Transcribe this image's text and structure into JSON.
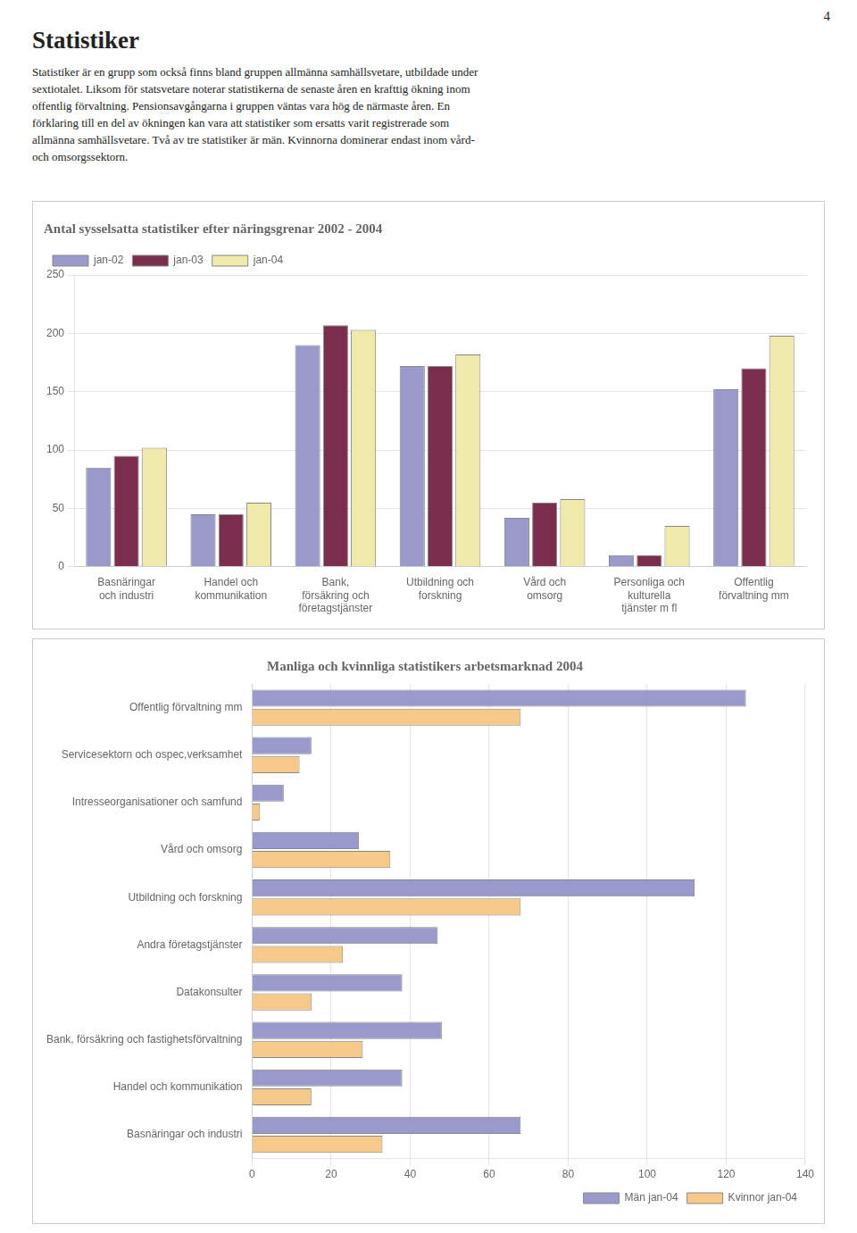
{
  "page_number": "4",
  "title": "Statistiker",
  "text": [
    "Statistiker är en grupp som också finns bland gruppen allmänna samhällsvetare, utbildade under",
    "sextiotalet. Liksom för statsvetare noterar statistikerna de senaste åren en krafttig ökning inom",
    "offentlig förvaltning. Pensionsavgångarna i gruppen väntas vara hög de närmaste åren. En",
    "förklaring till en del av ökningen kan vara att statistiker som ersatts varit registrerade som",
    "allmänna samhällsvetare. Två av tre statistiker är män. Kvinnorna dominerar endast inom vård-",
    "och omsorgssektorn."
  ],
  "chart_data": [
    {
      "type": "bar",
      "title": "Antal sysselsatta statistiker efter näringsgrenar 2002 - 2004",
      "categories": [
        "Basnäringar\noch industri",
        "Handel och\nkommunikation",
        "Bank,\nförsäkring och\nföretagstjänster",
        "Utbildning och\nforskning",
        "Vård och\nomsorg",
        "Personliga och\nkulturella\ntjänster m fl",
        "Offentlig\nförvaltning mm"
      ],
      "series": [
        {
          "name": "jan-02",
          "color": "#9999CC",
          "values": [
            85,
            45,
            190,
            172,
            42,
            10,
            152
          ]
        },
        {
          "name": "jan-03",
          "color": "#7B2D4E",
          "values": [
            95,
            45,
            207,
            172,
            55,
            10,
            170
          ]
        },
        {
          "name": "jan-04",
          "color": "#F0EAAA",
          "values": [
            102,
            55,
            203,
            182,
            58,
            35,
            198
          ]
        }
      ],
      "ylim": [
        0,
        250
      ],
      "yticks": [
        0,
        50,
        100,
        150,
        200,
        250
      ],
      "grid": true,
      "legend": "upper left"
    },
    {
      "type": "bar",
      "orientation": "horizontal",
      "title": "Manliga och kvinnliga statistikers arbetsmarknad 2004",
      "categories": [
        "Offentlig förvaltning mm",
        "Servicesektorn och ospec,verksamhet",
        "Intresseorganisationer och samfund",
        "Vård och omsorg",
        "Utbildning och forskning",
        "Andra företagstjänster",
        "Datakonsulter",
        "Bank, försäkring och fastighetsförvaltning",
        "Handel och kommunikation",
        "Basnäringar och industri"
      ],
      "series": [
        {
          "name": "Män jan-04",
          "color": "#9999CC",
          "values": [
            125,
            15,
            8,
            27,
            112,
            47,
            38,
            48,
            38,
            68
          ]
        },
        {
          "name": "Kvinnor jan-04",
          "color": "#F5C98A",
          "values": [
            68,
            12,
            2,
            35,
            68,
            23,
            15,
            28,
            15,
            33
          ]
        }
      ],
      "xlim": [
        0,
        140
      ],
      "xticks": [
        0,
        20,
        40,
        60,
        80,
        100,
        120,
        140
      ],
      "grid": true,
      "legend": "lower right"
    }
  ]
}
